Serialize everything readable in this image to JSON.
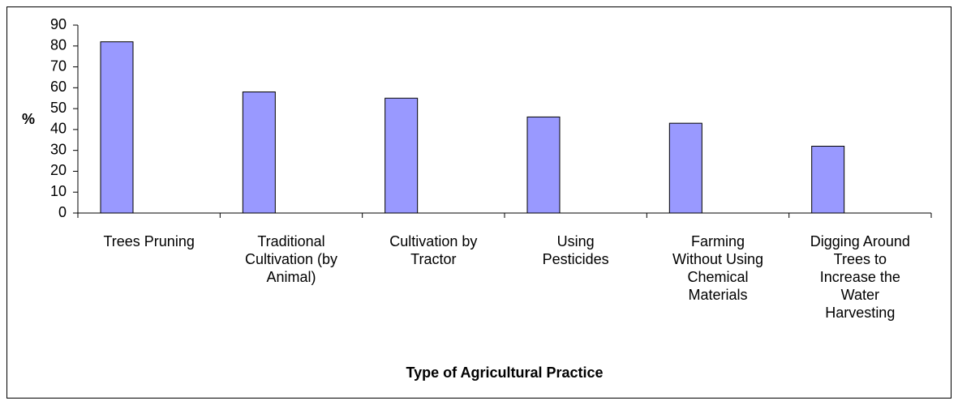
{
  "chart_data": {
    "type": "bar",
    "x_label": "Type of Agricultural Practice",
    "y_label": "%",
    "categories": [
      "Trees Pruning",
      "Traditional Cultivation (by Animal)",
      "Cultivation by Tractor",
      "Using Pesticides",
      "Farming Without Using Chemical Materials",
      "Digging Around Trees to Increase the Water Harvesting"
    ],
    "values": [
      82,
      58,
      55,
      46,
      43,
      32
    ],
    "color": "#9999ff",
    "ylim": [
      0,
      90
    ],
    "yticks": [
      0,
      10,
      20,
      30,
      40,
      50,
      60,
      70,
      80,
      90
    ],
    "grid": false
  }
}
